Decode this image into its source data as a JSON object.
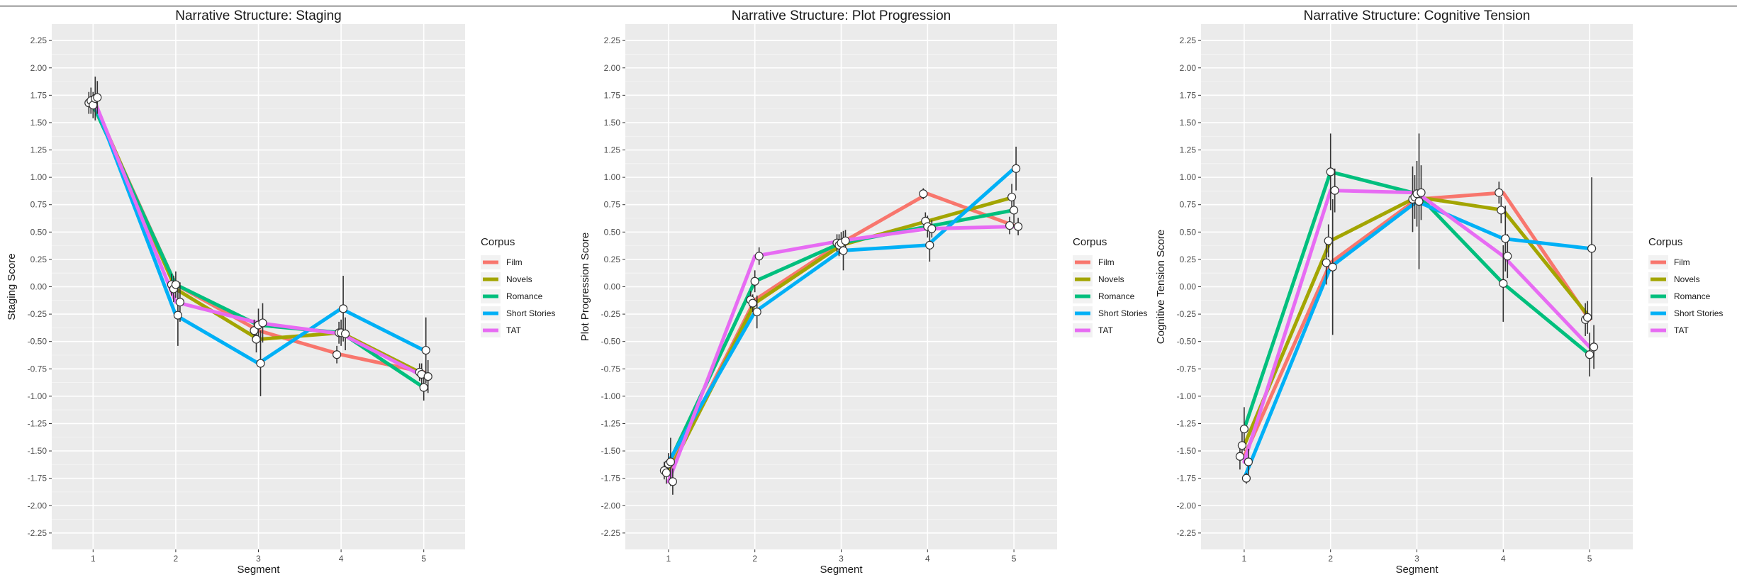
{
  "chart_data": [
    {
      "type": "line",
      "title": "Narrative Structure: Staging",
      "xlabel": "Segment",
      "ylabel": "Staging Score",
      "x": [
        1,
        2,
        3,
        4,
        5
      ],
      "ylim": [
        -2.4,
        2.4
      ],
      "yticks": [
        -2.25,
        -2.0,
        -1.75,
        -1.5,
        -1.25,
        -1.0,
        -0.75,
        -0.5,
        -0.25,
        0.0,
        0.25,
        0.5,
        0.75,
        1.0,
        1.25,
        1.5,
        1.75,
        2.0,
        2.25
      ],
      "ytick_labels": [
        "-2.25",
        "-2.00",
        "-1.75",
        "-1.50",
        "-1.25",
        "-1.00",
        "-0.75",
        "-0.50",
        "-0.25",
        "0.00",
        "0.25",
        "0.50",
        "0.75",
        "1.00",
        "1.25",
        "1.50",
        "1.75",
        "2.00",
        "2.25"
      ],
      "error_bars": true,
      "grid": true,
      "legend": {
        "title": "Corpus",
        "position": "right"
      },
      "series": [
        {
          "name": "Film",
          "color": "#F8766D",
          "values": [
            1.68,
            0.02,
            -0.4,
            -0.62,
            -0.78
          ],
          "err": [
            0.1,
            0.1,
            0.1,
            0.08,
            0.08
          ]
        },
        {
          "name": "Novels",
          "color": "#A3A500",
          "values": [
            1.7,
            -0.02,
            -0.48,
            -0.42,
            -0.8
          ],
          "err": [
            0.12,
            0.12,
            0.12,
            0.1,
            0.1
          ]
        },
        {
          "name": "Romance",
          "color": "#00BF7D",
          "values": [
            1.66,
            0.02,
            -0.35,
            -0.42,
            -0.92
          ],
          "err": [
            0.12,
            0.12,
            0.15,
            0.12,
            0.12
          ]
        },
        {
          "name": "Short Stories",
          "color": "#00B0F6",
          "values": [
            1.72,
            -0.26,
            -0.7,
            -0.2,
            -0.58
          ],
          "err": [
            0.2,
            0.28,
            0.3,
            0.3,
            0.3
          ]
        },
        {
          "name": "TAT",
          "color": "#E76BF3",
          "values": [
            1.73,
            -0.14,
            -0.33,
            -0.43,
            -0.82
          ],
          "err": [
            0.15,
            0.18,
            0.18,
            0.15,
            0.15
          ]
        }
      ]
    },
    {
      "type": "line",
      "title": "Narrative Structure: Plot Progression",
      "xlabel": "Segment",
      "ylabel": "Plot Progression Score",
      "x": [
        1,
        2,
        3,
        4,
        5
      ],
      "ylim": [
        -2.4,
        2.4
      ],
      "yticks": [
        -2.25,
        -2.0,
        -1.75,
        -1.5,
        -1.25,
        -1.0,
        -0.75,
        -0.5,
        -0.25,
        0.0,
        0.25,
        0.5,
        0.75,
        1.0,
        1.25,
        1.5,
        1.75,
        2.0,
        2.25
      ],
      "ytick_labels": [
        "-2.25",
        "-2.00",
        "-1.75",
        "-1.50",
        "-1.25",
        "-1.00",
        "-0.75",
        "-0.50",
        "-0.25",
        "0.00",
        "0.25",
        "0.50",
        "0.75",
        "1.00",
        "1.25",
        "1.50",
        "1.75",
        "2.00",
        "2.25"
      ],
      "error_bars": true,
      "grid": true,
      "legend": {
        "title": "Corpus",
        "position": "right"
      },
      "series": [
        {
          "name": "Film",
          "color": "#F8766D",
          "values": [
            -1.68,
            -0.12,
            0.4,
            0.85,
            0.56
          ],
          "err": [
            0.08,
            0.08,
            0.08,
            0.05,
            0.08
          ]
        },
        {
          "name": "Novels",
          "color": "#A3A500",
          "values": [
            -1.7,
            -0.15,
            0.38,
            0.6,
            0.82
          ],
          "err": [
            0.1,
            0.08,
            0.1,
            0.08,
            0.12
          ]
        },
        {
          "name": "Romance",
          "color": "#00BF7D",
          "values": [
            -1.62,
            0.05,
            0.4,
            0.55,
            0.7
          ],
          "err": [
            0.1,
            0.1,
            0.1,
            0.1,
            0.12
          ]
        },
        {
          "name": "Short Stories",
          "color": "#00B0F6",
          "values": [
            -1.6,
            -0.23,
            0.33,
            0.38,
            1.08
          ],
          "err": [
            0.22,
            0.15,
            0.18,
            0.15,
            0.2
          ]
        },
        {
          "name": "TAT",
          "color": "#E76BF3",
          "values": [
            -1.78,
            0.28,
            0.42,
            0.53,
            0.55
          ],
          "err": [
            0.12,
            0.08,
            0.1,
            0.08,
            0.08
          ]
        }
      ]
    },
    {
      "type": "line",
      "title": "Narrative Structure: Cognitive Tension",
      "xlabel": "Segment",
      "ylabel": "Cognitive Tension Score",
      "x": [
        1,
        2,
        3,
        4,
        5
      ],
      "ylim": [
        -2.4,
        2.4
      ],
      "yticks": [
        -2.25,
        -2.0,
        -1.75,
        -1.5,
        -1.25,
        -1.0,
        -0.75,
        -0.5,
        -0.25,
        0.0,
        0.25,
        0.5,
        0.75,
        1.0,
        1.25,
        1.5,
        1.75,
        2.0,
        2.25
      ],
      "ytick_labels": [
        "-2.25",
        "-2.00",
        "-1.75",
        "-1.50",
        "-1.25",
        "-1.00",
        "-0.75",
        "-0.50",
        "-0.25",
        "0.00",
        "0.25",
        "0.50",
        "0.75",
        "1.00",
        "1.25",
        "1.50",
        "1.75",
        "2.00",
        "2.25"
      ],
      "error_bars": true,
      "grid": true,
      "legend": {
        "title": "Corpus",
        "position": "right"
      },
      "series": [
        {
          "name": "Film",
          "color": "#F8766D",
          "values": [
            -1.55,
            0.22,
            0.8,
            0.86,
            -0.3
          ],
          "err": [
            0.12,
            0.2,
            0.3,
            0.1,
            0.15
          ]
        },
        {
          "name": "Novels",
          "color": "#A3A500",
          "values": [
            -1.45,
            0.42,
            0.82,
            0.7,
            -0.28
          ],
          "err": [
            0.12,
            0.15,
            0.2,
            0.12,
            0.15
          ]
        },
        {
          "name": "Romance",
          "color": "#00BF7D",
          "values": [
            -1.3,
            1.05,
            0.85,
            0.03,
            -0.62
          ],
          "err": [
            0.2,
            0.35,
            0.3,
            0.35,
            0.2
          ]
        },
        {
          "name": "Short Stories",
          "color": "#00B0F6",
          "values": [
            -1.75,
            0.18,
            0.78,
            0.44,
            0.35
          ],
          "err": [
            0.05,
            0.62,
            0.62,
            0.3,
            0.65
          ]
        },
        {
          "name": "TAT",
          "color": "#E76BF3",
          "values": [
            -1.6,
            0.88,
            0.86,
            0.28,
            -0.55
          ],
          "err": [
            0.12,
            0.2,
            0.25,
            0.2,
            0.2
          ]
        }
      ]
    }
  ]
}
